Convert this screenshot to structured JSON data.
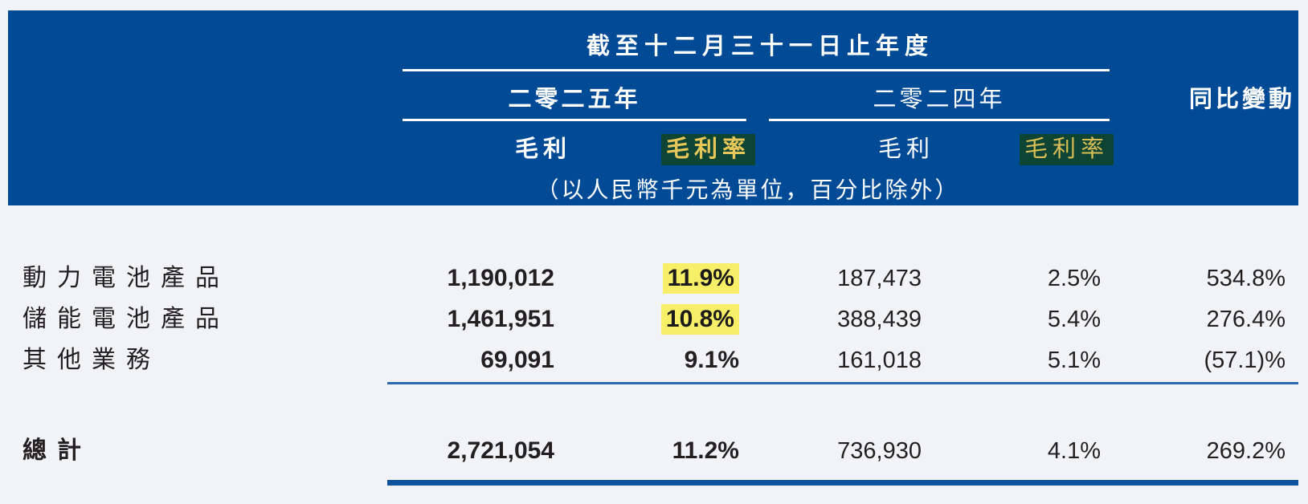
{
  "header": {
    "title": "截至十二月三十一日止年度",
    "year_2025": "二零二五年",
    "year_2024": "二零二四年",
    "yoy_label": "同比變動",
    "gross_profit_2025": "毛利",
    "gross_margin_2025": "毛利率",
    "gross_profit_2024": "毛利",
    "gross_margin_2024": "毛利率",
    "units_note": "（以人民幣千元為單位，百分比除外）"
  },
  "rows": [
    {
      "label": "動力電池產品",
      "gp2025": "1,190,012",
      "gm2025": "11.9%",
      "gp2024": "187,473",
      "gm2024": "2.5%",
      "yoy": "534.8%"
    },
    {
      "label": "儲能電池產品",
      "gp2025": "1,461,951",
      "gm2025": "10.8%",
      "gp2024": "388,439",
      "gm2024": "5.4%",
      "yoy": "276.4%"
    },
    {
      "label": "其他業務",
      "gp2025": "69,091",
      "gm2025": "9.1%",
      "gp2024": "161,018",
      "gm2024": "5.1%",
      "yoy": "(57.1)%"
    }
  ],
  "total": {
    "label": "總計",
    "gp2025": "2,721,054",
    "gm2025": "11.2%",
    "gp2024": "736,930",
    "gm2024": "4.1%",
    "yoy": "269.2%"
  },
  "colors": {
    "header_band_bg": "#004a96",
    "body_highlight_bg": "#f8ef68",
    "header_highlight_bg": "#0d4434",
    "header_highlight_text": "#e8c75a",
    "thin_rule": "#2a67ab",
    "thick_rule": "#0f529e"
  }
}
